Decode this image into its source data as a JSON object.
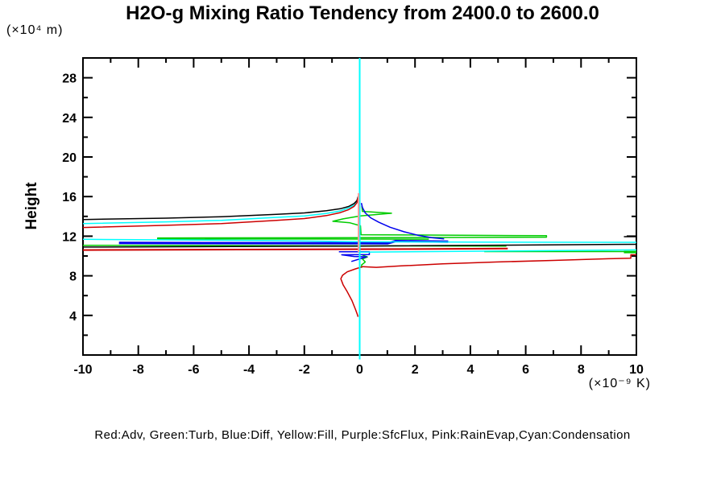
{
  "title": "H2O-g Mixing Ratio Tendency from 2400.0 to 2600.0",
  "y_axis": {
    "label": "Height",
    "unit": "(×10⁴ m)"
  },
  "x_axis": {
    "unit": "(×10⁻⁹ K)"
  },
  "legend": "Red:Adv, Green:Turb, Blue:Diff, Yellow:Fill, Purple:SfcFlux, Pink:RainEvap,Cyan:Condensation",
  "colors": {
    "adv_red": "#cc0000",
    "turb_green": "#00cc00",
    "diff_blue": "#0000ee",
    "fill_yellow": "#cccc00",
    "sfcflux_purple": "#aa00aa",
    "rainevap_pink": "#ff9a9a",
    "condensation_cyan": "#00ffff",
    "axis_black": "#000000"
  },
  "chart_data": {
    "type": "line",
    "title": "H2O-g Mixing Ratio Tendency from 2400.0 to 2600.0",
    "xlabel": "(×10⁻⁹ K)",
    "ylabel": "Height (×10⁴ m)",
    "xlim": [
      -10,
      10
    ],
    "ylim": [
      0,
      30
    ],
    "grid": false,
    "legend_position": "bottom",
    "x_major_ticks": [
      -10,
      -8,
      -6,
      -4,
      -2,
      0,
      2,
      4,
      6,
      8,
      10
    ],
    "x_minor_ticks": [
      -9,
      -7,
      -5,
      -3,
      -1,
      1,
      3,
      5,
      7,
      9
    ],
    "y_major_ticks": [
      4,
      8,
      12,
      16,
      20,
      24,
      28
    ],
    "y_minor_ticks": [
      2,
      6,
      10,
      14,
      18,
      22,
      26,
      30
    ],
    "y_labeled_ticks": [
      "4",
      "8",
      "12",
      "16",
      "20",
      "24",
      "28"
    ],
    "series": [
      {
        "name": "turb-profile",
        "legend": "Green:Turb",
        "color": "#00cc00",
        "width": 1.5,
        "points": [
          [
            0.08,
            15.05
          ],
          [
            0.1,
            14.5
          ],
          [
            1.15,
            14.32
          ],
          [
            0.02,
            14.05
          ],
          [
            -0.6,
            13.75
          ],
          [
            -0.97,
            13.5
          ],
          [
            -0.35,
            13.35
          ],
          [
            0.03,
            13.05
          ],
          [
            0.05,
            12.15
          ],
          [
            6.75,
            12.05
          ],
          [
            6.75,
            11.9
          ],
          [
            0.4,
            11.85
          ],
          [
            -7.3,
            11.82
          ],
          [
            -7.3,
            11.73
          ],
          [
            2.5,
            11.7
          ]
        ]
      },
      {
        "name": "turb-left-band",
        "legend": "Green:Turb",
        "color": "#00cc00",
        "width": 1.5,
        "points": [
          [
            -10,
            11.08
          ],
          [
            5.3,
            11.0
          ]
        ]
      },
      {
        "name": "turb-right-band",
        "legend": "Green:Turb",
        "color": "#00cc00",
        "width": 1.5,
        "points": [
          [
            4.5,
            10.45
          ],
          [
            10,
            10.45
          ]
        ]
      },
      {
        "name": "turb-right-thick",
        "legend": "Green:Turb",
        "color": "#00cc00",
        "width": 3,
        "points": [
          [
            9.55,
            10.4
          ],
          [
            10,
            10.4
          ]
        ]
      },
      {
        "name": "turb-lower-squiggle",
        "legend": "Green:Turb",
        "color": "#00cc00",
        "width": 1.5,
        "points": [
          [
            0.1,
            10.1
          ],
          [
            0.28,
            9.9
          ],
          [
            0.1,
            9.7
          ],
          [
            0.2,
            9.4
          ],
          [
            0.07,
            9.1
          ],
          [
            0.07,
            8.8
          ]
        ]
      },
      {
        "name": "diff-decay",
        "legend": "Blue:Diff",
        "color": "#0000ee",
        "width": 1.5,
        "points": [
          [
            0.06,
            15.35
          ],
          [
            0.1,
            14.9
          ],
          [
            0.2,
            14.35
          ],
          [
            0.4,
            13.85
          ],
          [
            0.7,
            13.4
          ],
          [
            1.1,
            12.9
          ],
          [
            1.6,
            12.45
          ],
          [
            2.1,
            12.1
          ],
          [
            2.6,
            11.85
          ],
          [
            3.05,
            11.72
          ]
        ]
      },
      {
        "name": "diff-thick-band",
        "legend": "Blue:Diff",
        "color": "#0000ee",
        "width": 3,
        "points": [
          [
            -8.7,
            11.32
          ],
          [
            1.0,
            11.28
          ],
          [
            1.3,
            11.5
          ],
          [
            3.2,
            11.45
          ]
        ]
      },
      {
        "name": "diff-lower-squiggle",
        "legend": "Blue:Diff",
        "color": "#0000ee",
        "width": 1.5,
        "points": [
          [
            -0.75,
            10.42
          ],
          [
            0.35,
            10.42
          ],
          [
            0.35,
            10.15
          ],
          [
            -0.65,
            10.12
          ],
          [
            -0.2,
            9.95
          ],
          [
            0.25,
            9.92
          ],
          [
            0.05,
            9.75
          ],
          [
            -0.3,
            9.45
          ]
        ]
      },
      {
        "name": "cond-upper-band",
        "legend": "Cyan:Condensation",
        "color": "#00ffff",
        "width": 1.5,
        "points": [
          [
            -10,
            11.68
          ],
          [
            -3,
            11.55
          ],
          [
            0,
            11.45
          ],
          [
            4,
            11.4
          ],
          [
            10,
            11.38
          ]
        ]
      },
      {
        "name": "cond-lower-band",
        "legend": "Cyan:Condensation",
        "color": "#00ffff",
        "width": 1.5,
        "points": [
          [
            0,
            10.38
          ],
          [
            5,
            10.5
          ],
          [
            10,
            10.62
          ]
        ]
      },
      {
        "name": "cond-rise",
        "legend": "Cyan:Condensation",
        "color": "#00ffff",
        "width": 1.5,
        "points": [
          [
            -10,
            13.28
          ],
          [
            -7,
            13.45
          ],
          [
            -5,
            13.6
          ],
          [
            -3,
            13.9
          ],
          [
            -2,
            14.05
          ],
          [
            -1.2,
            14.3
          ],
          [
            -0.7,
            14.55
          ],
          [
            -0.4,
            14.85
          ],
          [
            -0.2,
            15.15
          ],
          [
            -0.1,
            15.45
          ],
          [
            -0.07,
            15.7
          ]
        ]
      },
      {
        "name": "total-rise",
        "legend": "",
        "color": "#000000",
        "width": 1.5,
        "points": [
          [
            -10,
            13.68
          ],
          [
            -7,
            13.82
          ],
          [
            -5,
            13.97
          ],
          [
            -3,
            14.2
          ],
          [
            -2,
            14.35
          ],
          [
            -1.2,
            14.57
          ],
          [
            -0.7,
            14.77
          ],
          [
            -0.4,
            15.0
          ],
          [
            -0.2,
            15.3
          ],
          [
            -0.1,
            15.6
          ],
          [
            -0.05,
            16.05
          ]
        ]
      },
      {
        "name": "total-band",
        "legend": "",
        "color": "#000000",
        "width": 1.5,
        "points": [
          [
            -10,
            10.9
          ],
          [
            0,
            11.0
          ],
          [
            10,
            11.18
          ]
        ]
      },
      {
        "name": "total-right-segment",
        "legend": "",
        "color": "#000000",
        "width": 1.5,
        "points": [
          [
            9.55,
            11.95
          ],
          [
            10,
            11.95
          ]
        ]
      },
      {
        "name": "adv-rise",
        "legend": "Red:Adv",
        "color": "#cc0000",
        "width": 1.5,
        "points": [
          [
            -10,
            12.88
          ],
          [
            -7,
            13.1
          ],
          [
            -5,
            13.28
          ],
          [
            -3,
            13.6
          ],
          [
            -2,
            13.78
          ],
          [
            -1.2,
            14.08
          ],
          [
            -0.7,
            14.38
          ],
          [
            -0.4,
            14.68
          ],
          [
            -0.2,
            15.02
          ],
          [
            -0.1,
            15.38
          ],
          [
            -0.06,
            15.85
          ]
        ]
      },
      {
        "name": "adv-band",
        "legend": "Red:Adv",
        "color": "#cc0000",
        "width": 2,
        "points": [
          [
            -10,
            10.6
          ],
          [
            2,
            10.7
          ],
          [
            5.35,
            10.75
          ]
        ]
      },
      {
        "name": "adv-tail",
        "legend": "Red:Adv",
        "color": "#cc0000",
        "width": 1.5,
        "points": [
          [
            0.1,
            8.92
          ],
          [
            0.6,
            8.85
          ],
          [
            1.5,
            9.0
          ],
          [
            3,
            9.2
          ],
          [
            5,
            9.4
          ],
          [
            7,
            9.55
          ],
          [
            9,
            9.72
          ],
          [
            9.8,
            9.78
          ],
          [
            9.8,
            10.12
          ],
          [
            10,
            10.12
          ]
        ]
      },
      {
        "name": "adv-hook",
        "legend": "Red:Adv",
        "color": "#cc0000",
        "width": 1.5,
        "points": [
          [
            0.1,
            8.92
          ],
          [
            -0.15,
            8.7
          ],
          [
            -0.45,
            8.4
          ],
          [
            -0.62,
            8.05
          ],
          [
            -0.68,
            7.7
          ],
          [
            -0.6,
            7.1
          ],
          [
            -0.45,
            6.4
          ],
          [
            -0.28,
            5.5
          ],
          [
            -0.15,
            4.6
          ],
          [
            -0.08,
            4.05
          ],
          [
            -0.06,
            3.85
          ]
        ]
      },
      {
        "name": "condensation-vertical",
        "legend": "Cyan:Condensation",
        "color": "#00ffff",
        "width": 2,
        "points": [
          [
            0,
            30
          ],
          [
            0,
            -0.45
          ]
        ]
      },
      {
        "name": "rainevap-vertical",
        "legend": "Pink:RainEvap",
        "color": "#ff9a9a",
        "width": 2,
        "points": [
          [
            -0.04,
            16.35
          ],
          [
            -0.04,
            10.4
          ]
        ]
      }
    ]
  }
}
